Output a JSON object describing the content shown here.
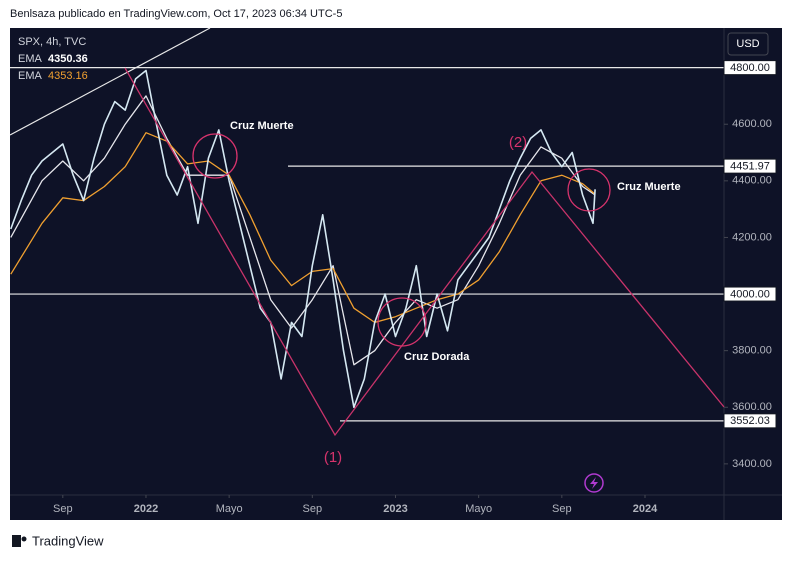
{
  "header": {
    "byline": "Benlsaza publicado en TradingView.com, Oct 17, 2023 06:34 UTC-5",
    "brand": "TradingView",
    "currency": "USD"
  },
  "chart_data": {
    "type": "line",
    "title": "SPX, 4h, TVC",
    "x": [
      -6.5,
      -6,
      -5.5,
      -5,
      -4,
      -3.5,
      -3,
      -2.5,
      -2,
      -1.5,
      -1,
      -0.5,
      0,
      0.5,
      1,
      1.5,
      2,
      2.5,
      3,
      3.5,
      4,
      4.5,
      5,
      5.5,
      6,
      6.5,
      7,
      7.5,
      8,
      8.5,
      9,
      9.5,
      10,
      10.5,
      11,
      11.5,
      12,
      12.5,
      13,
      13.5,
      14,
      14.5,
      15,
      15.5,
      16,
      16.5,
      17,
      17.5,
      18,
      18.5,
      19,
      19.5,
      20,
      20.5,
      21,
      21.5,
      21.6
    ],
    "values": [
      4230,
      4330,
      4420,
      4470,
      4530,
      4420,
      4330,
      4480,
      4600,
      4680,
      4650,
      4760,
      4790,
      4600,
      4420,
      4350,
      4450,
      4250,
      4480,
      4580,
      4400,
      4250,
      4100,
      3950,
      3900,
      3700,
      3900,
      3850,
      4100,
      4280,
      4050,
      3800,
      3600,
      3700,
      3900,
      4000,
      3850,
      3950,
      4100,
      3850,
      4000,
      3870,
      4050,
      4100,
      4150,
      4200,
      4300,
      4400,
      4480,
      4550,
      4580,
      4500,
      4450,
      4500,
      4350,
      4250,
      4370
    ],
    "color": "#d5e8f2",
    "series": [
      {
        "name": "EMA",
        "color": "#e6e6ec",
        "last_value": 4350.36,
        "x": [
          -6.5,
          -5,
          -4,
          -3,
          -2,
          -1,
          0,
          1,
          2,
          3,
          4,
          5,
          6,
          7,
          8,
          9,
          10,
          11,
          12,
          13,
          14,
          15,
          16,
          17,
          18,
          19,
          20,
          21,
          21.6
        ],
        "values": [
          4200,
          4400,
          4470,
          4400,
          4480,
          4600,
          4700,
          4550,
          4420,
          4420,
          4420,
          4200,
          3980,
          3880,
          3980,
          4100,
          3750,
          3800,
          3900,
          3980,
          3950,
          3980,
          4100,
          4250,
          4420,
          4520,
          4480,
          4380,
          4350
        ]
      },
      {
        "name": "EMA",
        "color": "#f0a030",
        "last_value": 4353.16,
        "x": [
          -6.5,
          -5,
          -4,
          -3,
          -2,
          -1,
          0,
          1,
          2,
          3,
          4,
          5,
          6,
          7,
          8,
          9,
          10,
          11,
          12,
          13,
          14,
          15,
          16,
          17,
          18,
          19,
          20,
          21,
          21.6
        ],
        "values": [
          4070,
          4250,
          4340,
          4330,
          4380,
          4450,
          4570,
          4540,
          4460,
          4470,
          4420,
          4280,
          4120,
          4030,
          4080,
          4090,
          3950,
          3900,
          3920,
          3950,
          3980,
          4000,
          4050,
          4150,
          4280,
          4400,
          4420,
          4390,
          4353
        ]
      }
    ],
    "xlim": [
      -6.54,
      27.8
    ],
    "xticks": [
      {
        "value": -4,
        "label": "Sep"
      },
      {
        "value": 0,
        "label": "2022"
      },
      {
        "value": 4,
        "label": "Mayo"
      },
      {
        "value": 8,
        "label": "Sep"
      },
      {
        "value": 12,
        "label": "2023"
      },
      {
        "value": 16,
        "label": "Mayo"
      },
      {
        "value": 20,
        "label": "Sep"
      },
      {
        "value": 24,
        "label": "2024"
      }
    ],
    "ylim": [
      3290,
      4940
    ],
    "yticks": [
      {
        "value": 3400,
        "label": "3400.00"
      },
      {
        "value": 3600,
        "label": "3600.00"
      },
      {
        "value": 3800,
        "label": "3800.00"
      },
      {
        "value": 4200,
        "label": "4200.00"
      },
      {
        "value": 4400,
        "label": "4400.00"
      },
      {
        "value": 4600,
        "label": "4600.00"
      }
    ],
    "levels": [
      {
        "value": 4800,
        "label": "4800.00"
      },
      4451.97,
      {
        "value": 4000,
        "label": "4000.00"
      },
      3552.03
    ],
    "annotations": [
      "Cruz Muerte",
      "Cruz Muerte",
      "Cruz Dorada",
      "(1)",
      "(2)"
    ]
  }
}
